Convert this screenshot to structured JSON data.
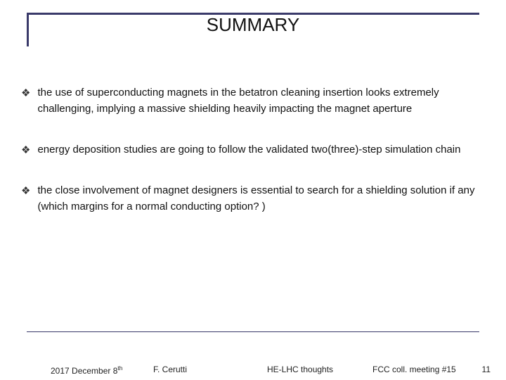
{
  "title": "SUMMARY",
  "bullets": [
    "the use of superconducting magnets in the betatron cleaning insertion looks extremely challenging, implying a massive shielding heavily impacting the magnet aperture",
    "energy deposition studies are going to follow the validated two(three)-step simulation chain",
    "the close involvement of magnet designers is essential to search for a shielding solution if any (which margins for a normal conducting option? )"
  ],
  "bullet_marker": "❖",
  "footer": {
    "date_main": "2017 December 8",
    "date_suffix": "th",
    "author": "F. Cerutti",
    "center": "HE-LHC thoughts",
    "meeting": "FCC coll. meeting #15",
    "page": "11"
  },
  "colors": {
    "accent": "#3a3a6a",
    "text": "#111111",
    "background": "#ffffff"
  }
}
